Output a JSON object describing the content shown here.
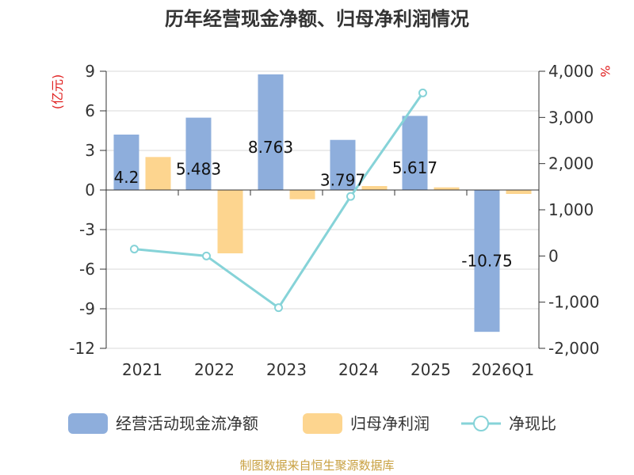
{
  "chart_data": {
    "type": "bar",
    "title": "历年经营现金净额、归母净利润情况",
    "categories": [
      "2021",
      "2022",
      "2023",
      "2024",
      "2025",
      "2026Q1"
    ],
    "series": [
      {
        "name": "经营活动现金流净额",
        "axis": "left",
        "kind": "bar",
        "color": "#8eaedc",
        "values": [
          4.2,
          5.483,
          8.763,
          3.797,
          5.617,
          -10.75
        ],
        "labels": [
          "4.2",
          "5.483",
          "8.763",
          "3.797",
          "5.617",
          "-10.75"
        ]
      },
      {
        "name": "归母净利润",
        "axis": "left",
        "kind": "bar",
        "color": "#fdd58f",
        "values": [
          2.5,
          -4.8,
          -0.7,
          0.3,
          0.2,
          -0.3
        ]
      },
      {
        "name": "净现比",
        "axis": "right",
        "kind": "line",
        "color": "#86d3d8",
        "values": [
          150,
          0,
          -1120,
          1290,
          3530,
          null
        ]
      }
    ],
    "y_left": {
      "unit": "(亿元)",
      "min": -12,
      "max": 9,
      "ticks": [
        -12,
        -9,
        -6,
        -3,
        0,
        3,
        6,
        9
      ]
    },
    "y_right": {
      "unit": "%",
      "min": -2000,
      "max": 4000,
      "ticks": [
        -2000,
        -1000,
        0,
        1000,
        2000,
        3000,
        4000
      ],
      "tick_labels": [
        "-2,000",
        "-1,000",
        "0",
        "1,000",
        "2,000",
        "3,000",
        "4,000"
      ]
    },
    "legend": [
      "经营活动现金流净额",
      "归母净利润",
      "净现比"
    ],
    "source": "制图数据来自恒生聚源数据库"
  }
}
